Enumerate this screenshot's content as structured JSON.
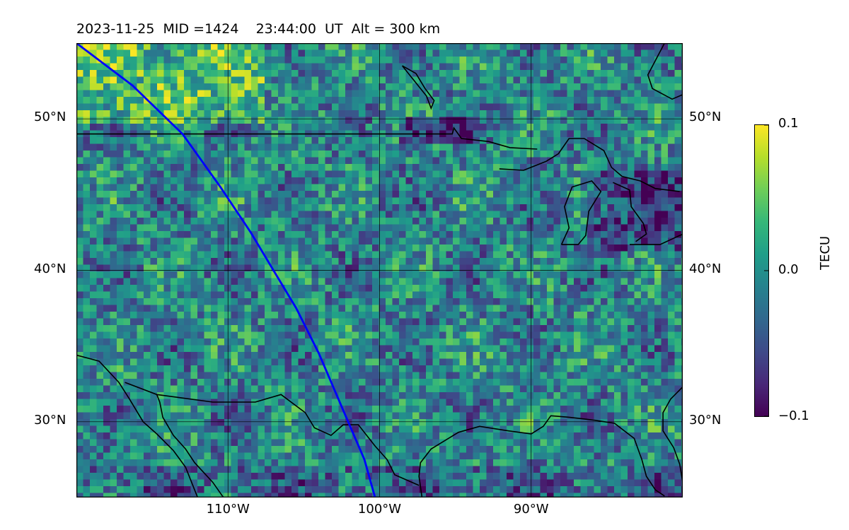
{
  "title": "2023-11-25  MID =1424    23:44:00  UT  Alt = 300 km",
  "map": {
    "lon_range": [
      -120,
      -80
    ],
    "lat_range": [
      25,
      55
    ],
    "lat_ticks": [
      {
        "value": 50,
        "label": "50°N"
      },
      {
        "value": 40,
        "label": "40°N"
      },
      {
        "value": 30,
        "label": "30°N"
      }
    ],
    "lon_ticks": [
      {
        "value": -110,
        "label": "110°W"
      },
      {
        "value": -100,
        "label": "100°W"
      },
      {
        "value": -90,
        "label": "90°W"
      }
    ],
    "grid": true,
    "track_color": "#0000ff",
    "coast_color": "#000000",
    "track": [
      [
        -120,
        55
      ],
      [
        -116.3,
        52.2
      ],
      [
        -113,
        49
      ],
      [
        -110.5,
        45.5
      ],
      [
        -108.5,
        42.5
      ],
      [
        -107,
        40
      ],
      [
        -105.5,
        37.5
      ],
      [
        -104,
        34.5
      ],
      [
        -102.5,
        31
      ],
      [
        -101,
        27.5
      ],
      [
        -100.3,
        25
      ]
    ],
    "coastlines": [
      [
        [
          -120,
          34.4
        ],
        [
          -118.5,
          34
        ],
        [
          -117.2,
          32.6
        ],
        [
          -116.5,
          31.5
        ],
        [
          -115.6,
          30
        ],
        [
          -114.7,
          29.2
        ],
        [
          -113.6,
          28.1
        ],
        [
          -112.8,
          27
        ],
        [
          -112.2,
          25.5
        ],
        [
          -112,
          25
        ]
      ],
      [
        [
          -114.7,
          31.8
        ],
        [
          -114.5,
          31.3
        ],
        [
          -114.3,
          30.3
        ],
        [
          -113.6,
          29.1
        ],
        [
          -112.8,
          28.2
        ],
        [
          -112.2,
          27.3
        ],
        [
          -111,
          26
        ],
        [
          -110.3,
          25
        ]
      ],
      [
        [
          -116.8,
          32.6
        ],
        [
          -114.7,
          31.8
        ],
        [
          -111,
          31.3
        ],
        [
          -108.2,
          31.3
        ],
        [
          -106.5,
          31.8
        ],
        [
          -104.9,
          30.6
        ],
        [
          -104.3,
          29.6
        ],
        [
          -103.2,
          29.1
        ],
        [
          -102.4,
          29.8
        ],
        [
          -101.4,
          29.8
        ],
        [
          -100.3,
          28.4
        ],
        [
          -99.5,
          27.5
        ],
        [
          -99,
          26.5
        ],
        [
          -97.4,
          25.8
        ]
      ],
      [
        [
          -97.2,
          25
        ],
        [
          -97.4,
          26.4
        ],
        [
          -97.3,
          27.3
        ],
        [
          -96.6,
          28.2
        ],
        [
          -94.8,
          29.3
        ],
        [
          -93.4,
          29.7
        ],
        [
          -91.5,
          29.4
        ],
        [
          -90,
          29.2
        ],
        [
          -89.2,
          29.7
        ],
        [
          -88.7,
          30.4
        ],
        [
          -87.5,
          30.3
        ],
        [
          -85.8,
          30.1
        ],
        [
          -84.5,
          29.9
        ],
        [
          -83.2,
          28.9
        ],
        [
          -82.7,
          27.5
        ],
        [
          -82.4,
          26.4
        ],
        [
          -81.8,
          25.5
        ],
        [
          -81.2,
          25.1
        ]
      ],
      [
        [
          -80,
          32.3
        ],
        [
          -80.8,
          31.5
        ],
        [
          -81.3,
          30.6
        ],
        [
          -81.3,
          29.4
        ],
        [
          -80.6,
          28.3
        ],
        [
          -80.2,
          27.2
        ],
        [
          -80,
          26
        ]
      ],
      [
        [
          -120,
          49
        ],
        [
          -95.2,
          49
        ],
        [
          -95.1,
          49.4
        ],
        [
          -94.6,
          48.7
        ],
        [
          -92.8,
          48.5
        ],
        [
          -91.4,
          48.1
        ],
        [
          -89.6,
          48.0
        ]
      ],
      [
        [
          -92.1,
          46.7
        ],
        [
          -90.5,
          46.6
        ],
        [
          -89,
          47.2
        ],
        [
          -88.2,
          47.7
        ],
        [
          -87.5,
          48.7
        ],
        [
          -86.5,
          48.7
        ],
        [
          -85.2,
          47.9
        ],
        [
          -84.7,
          46.8
        ],
        [
          -84.0,
          46.2
        ],
        [
          -82.8,
          45.9
        ],
        [
          -81.8,
          45.4
        ],
        [
          -80.2,
          45.2
        ]
      ],
      [
        [
          -88,
          41.7
        ],
        [
          -87.5,
          42.8
        ],
        [
          -87.8,
          44.2
        ],
        [
          -87.3,
          45.5
        ],
        [
          -86,
          45.9
        ],
        [
          -85.4,
          45.2
        ],
        [
          -86.2,
          43.9
        ],
        [
          -86.4,
          42.3
        ],
        [
          -86.9,
          41.7
        ],
        [
          -88,
          41.7
        ]
      ],
      [
        [
          -84.6,
          45.8
        ],
        [
          -83.5,
          45.3
        ],
        [
          -83.4,
          44.2
        ],
        [
          -82.6,
          43.1
        ],
        [
          -82.4,
          42.4
        ],
        [
          -83.1,
          41.9
        ]
      ],
      [
        [
          -83.5,
          41.7
        ],
        [
          -81.5,
          41.7
        ],
        [
          -80.2,
          42.3
        ],
        [
          -78.9,
          42.8
        ],
        [
          -80,
          42.6
        ]
      ],
      [
        [
          -79.8,
          43.3
        ],
        [
          -78.6,
          43.4
        ],
        [
          -76.4,
          43.5
        ],
        [
          -76.2,
          44.2
        ]
      ],
      [
        [
          -97.6,
          53
        ],
        [
          -97,
          52
        ],
        [
          -96.4,
          51.2
        ],
        [
          -96.6,
          50.7
        ],
        [
          -96.9,
          51.5
        ],
        [
          -98.5,
          53.5
        ],
        [
          -97.6,
          53
        ]
      ],
      [
        [
          -81.2,
          55
        ],
        [
          -82.3,
          52.9
        ],
        [
          -82.0,
          52
        ],
        [
          -80.7,
          51.3
        ],
        [
          -80,
          51.6
        ]
      ]
    ]
  },
  "colorbar": {
    "label": "TECU",
    "min": -0.1,
    "max": 0.1,
    "ticks": [
      {
        "value": 0.1,
        "label": "0.1"
      },
      {
        "value": 0.0,
        "label": "0.0"
      },
      {
        "value": -0.1,
        "label": "−0.1"
      }
    ],
    "colormap": "viridis",
    "stops": [
      "#440154",
      "#482878",
      "#3e4a89",
      "#31688e",
      "#26828e",
      "#1f9e89",
      "#35b779",
      "#6ece58",
      "#b5de2b",
      "#fde725"
    ]
  }
}
